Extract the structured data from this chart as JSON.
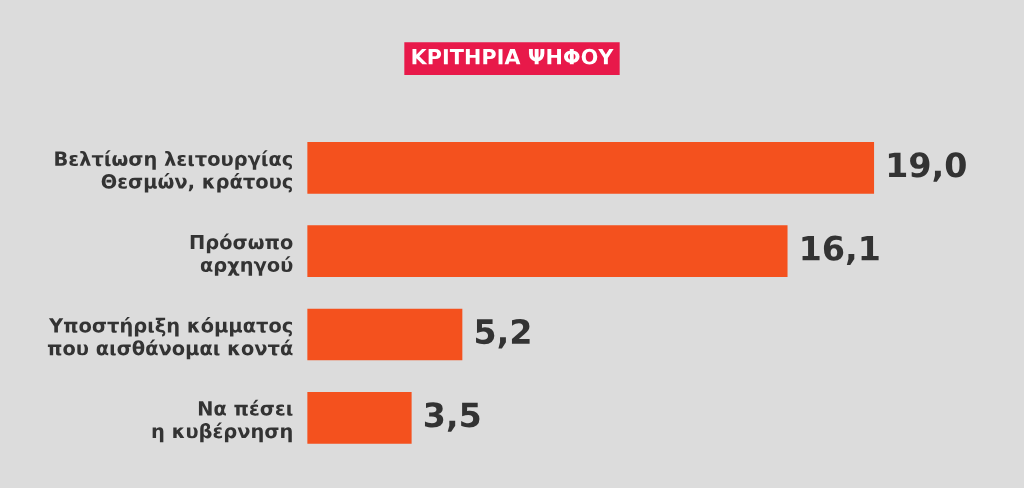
{
  "chart_data": {
    "type": "bar",
    "orientation": "horizontal",
    "title": "ΚΡΙΤΗΡΙΑ ΨΗΦΟΥ",
    "categories": [
      "Βελτίωση λειτουργίας\nΘεσμών, κράτους",
      "Πρόσωπο\nαρχηγού",
      "Υποστήριξη κόμματος\nπου αισθάνομαι κοντά",
      "Να πέσει\nη κυβέρνηση"
    ],
    "values": [
      19.0,
      16.1,
      5.2,
      3.5
    ],
    "value_labels": [
      "19,0",
      "16,1",
      "5,2",
      "3,5"
    ],
    "color": "#f4511e",
    "grid": false,
    "legend": false
  }
}
